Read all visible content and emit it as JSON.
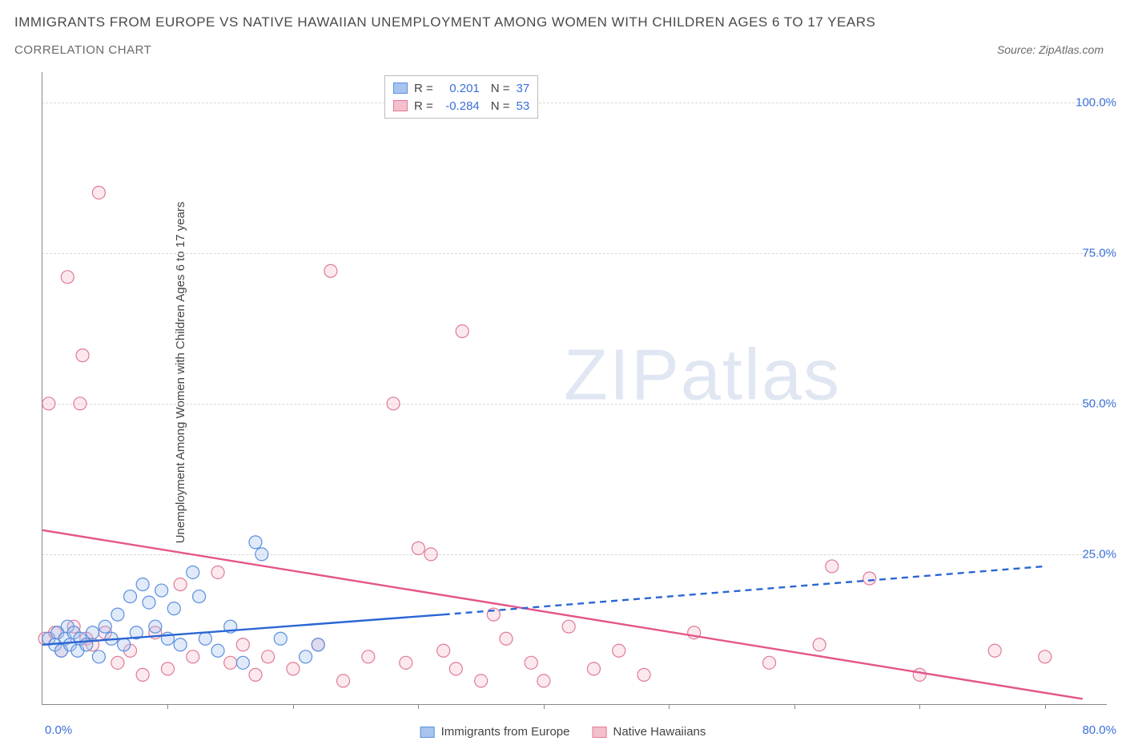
{
  "title": "IMMIGRANTS FROM EUROPE VS NATIVE HAWAIIAN UNEMPLOYMENT AMONG WOMEN WITH CHILDREN AGES 6 TO 17 YEARS",
  "subtitle": "CORRELATION CHART",
  "source": "Source: ZipAtlas.com",
  "ylabel": "Unemployment Among Women with Children Ages 6 to 17 years",
  "watermark_a": "ZIP",
  "watermark_b": "atlas",
  "series": [
    {
      "key": "blue",
      "label": "Immigrants from Europe",
      "fill": "#a7c4ef",
      "stroke": "#5a8fe0",
      "R": "0.201",
      "N": "37"
    },
    {
      "key": "pink",
      "label": "Native Hawaiians",
      "fill": "#f5c0cd",
      "stroke": "#e07a95",
      "R": "-0.284",
      "N": "53"
    }
  ],
  "stats_labels": {
    "R": "R =",
    "N": "N ="
  },
  "y_axis": {
    "min": 0,
    "max": 105,
    "ticks": [
      25,
      50,
      75,
      100
    ],
    "tick_labels": [
      "25.0%",
      "50.0%",
      "75.0%",
      "100.0%"
    ]
  },
  "x_axis": {
    "min": 0,
    "max": 85,
    "origin_label": "0.0%",
    "end_label": "80.0%",
    "tick_marks": [
      10,
      20,
      30,
      40,
      50,
      60,
      70,
      80
    ]
  },
  "grid_color": "#d8d8d8",
  "axis_color": "#888888",
  "text_color": "#444444",
  "value_color": "#3a6fd8",
  "background": "#ffffff",
  "marker_radius": 8,
  "marker_opacity": 0.35,
  "trend_blue": {
    "solid": [
      [
        0,
        10
      ],
      [
        32,
        15
      ]
    ],
    "dashed": [
      [
        32,
        15
      ],
      [
        80,
        23
      ]
    ],
    "stroke": "#2a66d4",
    "width": 2.4
  },
  "trend_pink": {
    "solid": [
      [
        0,
        29
      ],
      [
        83,
        1
      ]
    ],
    "stroke": "#e4558a",
    "width": 2.4
  },
  "points_blue": [
    [
      0.5,
      11
    ],
    [
      1,
      10
    ],
    [
      1.2,
      12
    ],
    [
      1.5,
      9
    ],
    [
      1.8,
      11
    ],
    [
      2,
      13
    ],
    [
      2.2,
      10
    ],
    [
      2.5,
      12
    ],
    [
      2.8,
      9
    ],
    [
      3,
      11
    ],
    [
      3.5,
      10
    ],
    [
      4,
      12
    ],
    [
      4.5,
      8
    ],
    [
      5,
      13
    ],
    [
      5.5,
      11
    ],
    [
      6,
      15
    ],
    [
      6.5,
      10
    ],
    [
      7,
      18
    ],
    [
      7.5,
      12
    ],
    [
      8,
      20
    ],
    [
      8.5,
      17
    ],
    [
      9,
      13
    ],
    [
      9.5,
      19
    ],
    [
      10,
      11
    ],
    [
      10.5,
      16
    ],
    [
      11,
      10
    ],
    [
      12,
      22
    ],
    [
      12.5,
      18
    ],
    [
      13,
      11
    ],
    [
      14,
      9
    ],
    [
      15,
      13
    ],
    [
      16,
      7
    ],
    [
      17,
      27
    ],
    [
      17.5,
      25
    ],
    [
      19,
      11
    ],
    [
      21,
      8
    ],
    [
      22,
      10
    ]
  ],
  "points_pink": [
    [
      0.2,
      11
    ],
    [
      0.5,
      50
    ],
    [
      1,
      12
    ],
    [
      1.5,
      9
    ],
    [
      2,
      71
    ],
    [
      2.5,
      13
    ],
    [
      3,
      50
    ],
    [
      3.2,
      58
    ],
    [
      3.5,
      11
    ],
    [
      4,
      10
    ],
    [
      4.5,
      85
    ],
    [
      5,
      12
    ],
    [
      6,
      7
    ],
    [
      7,
      9
    ],
    [
      8,
      5
    ],
    [
      9,
      12
    ],
    [
      10,
      6
    ],
    [
      11,
      20
    ],
    [
      12,
      8
    ],
    [
      14,
      22
    ],
    [
      15,
      7
    ],
    [
      16,
      10
    ],
    [
      17,
      5
    ],
    [
      18,
      8
    ],
    [
      20,
      6
    ],
    [
      22,
      10
    ],
    [
      24,
      4
    ],
    [
      23,
      72
    ],
    [
      26,
      8
    ],
    [
      28,
      50
    ],
    [
      29,
      7
    ],
    [
      30,
      26
    ],
    [
      31,
      25
    ],
    [
      32,
      9
    ],
    [
      33,
      6
    ],
    [
      33.5,
      62
    ],
    [
      35,
      4
    ],
    [
      36,
      15
    ],
    [
      37,
      11
    ],
    [
      39,
      7
    ],
    [
      40,
      4
    ],
    [
      42,
      13
    ],
    [
      44,
      6
    ],
    [
      46,
      9
    ],
    [
      48,
      5
    ],
    [
      52,
      12
    ],
    [
      58,
      7
    ],
    [
      62,
      10
    ],
    [
      63,
      23
    ],
    [
      66,
      21
    ],
    [
      70,
      5
    ],
    [
      76,
      9
    ],
    [
      80,
      8
    ]
  ]
}
